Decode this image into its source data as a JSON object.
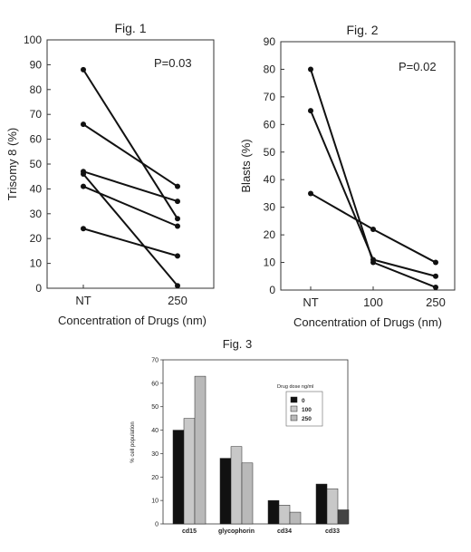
{
  "chart_data": [
    {
      "type": "line",
      "title": "Fig. 1",
      "annotation": "P=0.03",
      "xlabel": "Concentration of Drugs (nm)",
      "ylabel": "Trisomy 8 (%)",
      "categories": [
        "NT",
        "250"
      ],
      "ylim": [
        0,
        100
      ],
      "yticks": [
        0,
        10,
        20,
        30,
        40,
        50,
        60,
        70,
        80,
        90,
        100
      ],
      "grid": false,
      "series": [
        {
          "values": [
            88,
            28
          ]
        },
        {
          "values": [
            66,
            41
          ]
        },
        {
          "values": [
            47,
            35
          ]
        },
        {
          "values": [
            46,
            1
          ]
        },
        {
          "values": [
            41,
            25
          ]
        },
        {
          "values": [
            24,
            13
          ]
        }
      ]
    },
    {
      "type": "line",
      "title": "Fig. 2",
      "annotation": "P=0.02",
      "xlabel": "Concentration of Drugs (nm)",
      "ylabel": "Blasts (%)",
      "categories": [
        "NT",
        "100",
        "250"
      ],
      "ylim": [
        0,
        90
      ],
      "yticks": [
        0,
        10,
        20,
        30,
        40,
        50,
        60,
        70,
        80,
        90
      ],
      "grid": false,
      "series": [
        {
          "values": [
            80,
            10,
            1
          ]
        },
        {
          "values": [
            65,
            11,
            5
          ]
        },
        {
          "values": [
            35,
            22,
            10
          ]
        }
      ]
    },
    {
      "type": "bar",
      "title": "Fig. 3",
      "xlabel": "",
      "ylabel": "% cell population",
      "categories": [
        "cd15",
        "glycophorin",
        "cd34",
        "cd33"
      ],
      "ylim": [
        0,
        70
      ],
      "yticks": [
        0,
        10,
        20,
        30,
        40,
        50,
        60,
        70
      ],
      "grid": false,
      "legend_title": "Drug dose ng/ml",
      "legend_position": "top-right",
      "series": [
        {
          "name": "0",
          "color": "#111111",
          "values": [
            40,
            28,
            10,
            17
          ]
        },
        {
          "name": "100",
          "color": "#c8c8c8",
          "values": [
            45,
            33,
            8,
            15
          ]
        },
        {
          "name": "250",
          "color": "#b9b9b9",
          "values": [
            63,
            26,
            5,
            6
          ]
        }
      ],
      "bar_colors_note_cd33_250": "#444444"
    }
  ]
}
